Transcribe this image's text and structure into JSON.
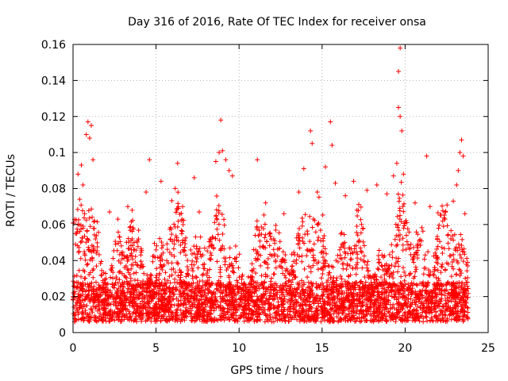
{
  "chart_data": {
    "type": "scatter",
    "title": "Day 316 of 2016, Rate Of TEC Index for receiver onsa",
    "xlabel": "GPS time / hours",
    "ylabel": "ROTI / TECUs",
    "xlim": [
      0,
      25
    ],
    "ylim": [
      0,
      0.16
    ],
    "x_ticks": [
      0,
      5,
      10,
      15,
      20,
      25
    ],
    "x_tick_labels": [
      "0",
      "5",
      "10",
      "15",
      "20",
      "25"
    ],
    "y_ticks": [
      0,
      0.02,
      0.04,
      0.06,
      0.08,
      0.1,
      0.12,
      0.14,
      0.16
    ],
    "y_tick_labels": [
      "0",
      "0.02",
      "0.04",
      "0.06",
      "0.08",
      "0.1",
      "0.12",
      "0.14",
      "0.16"
    ],
    "grid": true,
    "marker": "plus",
    "color": "#ff0000",
    "data_x_range": [
      0,
      23.8
    ],
    "series": [
      {
        "name": "ROTI",
        "x": [
          0.3,
          0.5,
          0.6,
          0.8,
          0.9,
          1.0,
          1.1,
          1.2,
          0.4,
          0.7,
          1.3,
          2.2,
          2.7,
          3.3,
          4.4,
          4.6,
          5.3,
          6.3,
          6.6,
          7.3,
          7.6,
          8.6,
          8.8,
          8.9,
          9.0,
          9.2,
          9.4,
          9.6,
          11.1,
          11.6,
          12.7,
          13.6,
          13.9,
          14.3,
          14.4,
          15.2,
          15.5,
          15.6,
          15.8,
          16.4,
          16.9,
          17.7,
          18.3,
          18.9,
          19.3,
          19.5,
          19.6,
          19.6,
          19.7,
          19.7,
          19.8,
          19.9,
          20.6,
          21.3,
          21.5,
          22.4,
          22.9,
          23.1,
          23.2,
          23.3,
          23.4,
          23.5,
          23.6
        ],
        "y": [
          0.088,
          0.093,
          0.082,
          0.11,
          0.117,
          0.108,
          0.115,
          0.096,
          0.074,
          0.066,
          0.062,
          0.067,
          0.063,
          0.07,
          0.078,
          0.096,
          0.084,
          0.094,
          0.07,
          0.086,
          0.067,
          0.095,
          0.1,
          0.118,
          0.101,
          0.096,
          0.09,
          0.087,
          0.096,
          0.072,
          0.066,
          0.078,
          0.091,
          0.112,
          0.105,
          0.092,
          0.117,
          0.104,
          0.083,
          0.076,
          0.084,
          0.079,
          0.082,
          0.077,
          0.087,
          0.094,
          0.125,
          0.145,
          0.158,
          0.12,
          0.112,
          0.088,
          0.072,
          0.098,
          0.07,
          0.063,
          0.073,
          0.082,
          0.09,
          0.1,
          0.107,
          0.098,
          0.066
        ]
      }
    ]
  }
}
